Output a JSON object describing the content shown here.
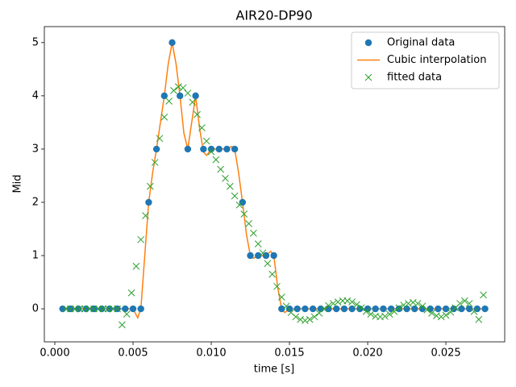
{
  "chart_data": {
    "type": "line",
    "title": "AIR20-DP90",
    "xlabel": "time [s]",
    "ylabel": "Mid",
    "xlim": [
      -0.00067,
      0.02876
    ],
    "ylim": [
      -0.62,
      5.3
    ],
    "xticks": [
      {
        "value": 0,
        "label": "0.000"
      },
      {
        "value": 0.005,
        "label": "0.005"
      },
      {
        "value": 0.01,
        "label": "0.010"
      },
      {
        "value": 0.015,
        "label": "0.015"
      },
      {
        "value": 0.02,
        "label": "0.020"
      },
      {
        "value": 0.025,
        "label": "0.025"
      }
    ],
    "yticks": [
      0,
      1,
      2,
      3,
      4,
      5
    ],
    "legend": "upper right",
    "series": [
      {
        "name": "Original data",
        "color": "#1f77b4",
        "marker": "o",
        "linestyle": "none",
        "x": [
          0.0005,
          0.001,
          0.0015,
          0.002,
          0.0025,
          0.003,
          0.0035,
          0.004,
          0.0045,
          0.005,
          0.0055,
          0.006,
          0.0065,
          0.007,
          0.0075,
          0.008,
          0.0085,
          0.009,
          0.0095,
          0.01,
          0.0105,
          0.011,
          0.0115,
          0.012,
          0.0125,
          0.013,
          0.0135,
          0.014,
          0.0145,
          0.015,
          0.0155,
          0.016,
          0.0165,
          0.017,
          0.0175,
          0.018,
          0.0185,
          0.019,
          0.0195,
          0.02,
          0.0205,
          0.021,
          0.0215,
          0.022,
          0.0225,
          0.023,
          0.0235,
          0.024,
          0.0245,
          0.025,
          0.0255,
          0.026,
          0.0265,
          0.027,
          0.0275
        ],
        "values": [
          0,
          0,
          0,
          0,
          0,
          0,
          0,
          0,
          0,
          0,
          0,
          2,
          3,
          4,
          5,
          4,
          3,
          4,
          3,
          3,
          3,
          3,
          3,
          2,
          1,
          1,
          1,
          1,
          0,
          0,
          0,
          0,
          0,
          0,
          0,
          0,
          0,
          0,
          0,
          0,
          0,
          0,
          0,
          0,
          0,
          0,
          0,
          0,
          0,
          0,
          0,
          0,
          0,
          0,
          0
        ]
      },
      {
        "name": "Cubic interpolation",
        "color": "#ff7f0e",
        "marker": "none",
        "linestyle": "solid",
        "x": [
          0.0005,
          0.0045,
          0.005,
          0.0053,
          0.0055,
          0.00575,
          0.006,
          0.00625,
          0.0065,
          0.00675,
          0.007,
          0.00725,
          0.0075,
          0.00775,
          0.008,
          0.00825,
          0.0085,
          0.00875,
          0.009,
          0.00925,
          0.0095,
          0.0097,
          0.01,
          0.0105,
          0.011,
          0.0113,
          0.0115,
          0.01175,
          0.012,
          0.01225,
          0.0125,
          0.0127,
          0.013,
          0.0135,
          0.0138,
          0.014,
          0.01425,
          0.0145,
          0.0147,
          0.015,
          0.0275
        ],
        "values": [
          0,
          0,
          0,
          -0.17,
          0,
          1.0,
          2,
          2.55,
          3,
          3.5,
          4,
          4.6,
          5,
          4.6,
          4,
          3.3,
          3,
          3.5,
          4,
          3.4,
          2.95,
          2.88,
          3,
          3,
          3,
          3.05,
          3,
          2.55,
          2,
          1.4,
          1,
          0.95,
          1,
          1,
          1.08,
          1,
          0.4,
          0,
          -0.07,
          0,
          0
        ]
      },
      {
        "name": "fitted data",
        "color": "#2ca02c",
        "marker": "x",
        "linestyle": "none",
        "x": [
          0.0007,
          0.001,
          0.0013,
          0.0016,
          0.0019,
          0.0022,
          0.0025,
          0.0028,
          0.0031,
          0.0034,
          0.0037,
          0.004,
          0.0043,
          0.0046,
          0.0049,
          0.0052,
          0.0055,
          0.0058,
          0.0061,
          0.0064,
          0.0067,
          0.007,
          0.0073,
          0.0076,
          0.0079,
          0.0082,
          0.0085,
          0.0088,
          0.0091,
          0.0094,
          0.0097,
          0.01,
          0.0103,
          0.0106,
          0.0109,
          0.0112,
          0.0115,
          0.0118,
          0.0121,
          0.0124,
          0.0127,
          0.013,
          0.0133,
          0.0136,
          0.0139,
          0.0142,
          0.0145,
          0.0148,
          0.0151,
          0.0154,
          0.0157,
          0.016,
          0.0163,
          0.0166,
          0.0169,
          0.0172,
          0.0175,
          0.0178,
          0.0181,
          0.0184,
          0.0187,
          0.019,
          0.0193,
          0.0196,
          0.0199,
          0.0202,
          0.0205,
          0.0208,
          0.0211,
          0.0214,
          0.0217,
          0.022,
          0.0223,
          0.0226,
          0.0229,
          0.0232,
          0.0235,
          0.0238,
          0.0241,
          0.0244,
          0.0247,
          0.025,
          0.0253,
          0.0256,
          0.0259,
          0.0262,
          0.0265,
          0.0268,
          0.0271,
          0.0274
        ],
        "values": [
          0,
          0,
          0,
          0,
          0,
          0,
          0,
          0,
          0,
          0,
          0,
          0,
          -0.3,
          -0.1,
          0.3,
          0.8,
          1.3,
          1.75,
          2.3,
          2.75,
          3.2,
          3.6,
          3.9,
          4.1,
          4.17,
          4.15,
          4.05,
          3.88,
          3.65,
          3.4,
          3.15,
          2.95,
          2.8,
          2.62,
          2.45,
          2.3,
          2.12,
          1.95,
          1.78,
          1.6,
          1.42,
          1.22,
          1.05,
          0.85,
          0.65,
          0.42,
          0.22,
          0.05,
          -0.07,
          -0.15,
          -0.2,
          -0.22,
          -0.2,
          -0.15,
          -0.08,
          0,
          0.06,
          0.1,
          0.13,
          0.15,
          0.15,
          0.13,
          0.08,
          0.02,
          -0.05,
          -0.1,
          -0.14,
          -0.15,
          -0.14,
          -0.1,
          -0.05,
          0.02,
          0.07,
          0.1,
          0.12,
          0.1,
          0.05,
          -0.02,
          -0.08,
          -0.13,
          -0.15,
          -0.12,
          -0.06,
          0.02,
          0.1,
          0.15,
          0.1,
          -0.05,
          -0.2,
          0.26
        ]
      }
    ]
  }
}
